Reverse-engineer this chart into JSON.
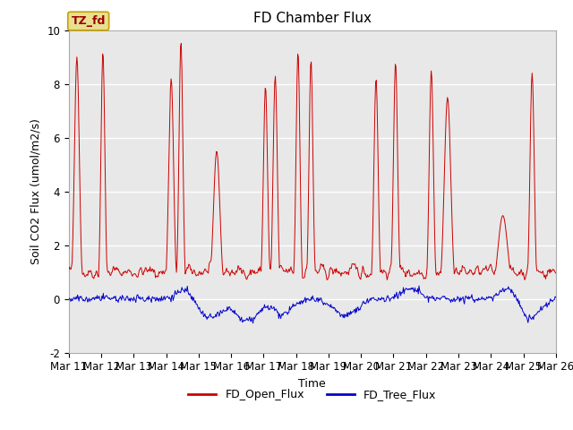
{
  "title": "FD Chamber Flux",
  "xlabel": "Time",
  "ylabel": "Soil CO2 Flux (umol/m2/s)",
  "ylim": [
    -2,
    10
  ],
  "xtick_labels": [
    "Mar 11",
    "Mar 12",
    "Mar 13",
    "Mar 14",
    "Mar 15",
    "Mar 16",
    "Mar 17",
    "Mar 18",
    "Mar 19",
    "Mar 20",
    "Mar 21",
    "Mar 22",
    "Mar 23",
    "Mar 24",
    "Mar 25",
    "Mar 26"
  ],
  "ytick_values": [
    -2,
    0,
    2,
    4,
    6,
    8,
    10
  ],
  "background_color": "#e8e8e8",
  "fig_background": "#ffffff",
  "red_color": "#cc0000",
  "blue_color": "#0000cc",
  "legend_red": "FD_Open_Flux",
  "legend_blue": "FD_Tree_Flux",
  "annotation_text": "TZ_fd",
  "annotation_bg": "#e8e090",
  "annotation_border": "#c8a000",
  "title_fontsize": 11,
  "axis_label_fontsize": 9,
  "tick_fontsize": 8.5
}
